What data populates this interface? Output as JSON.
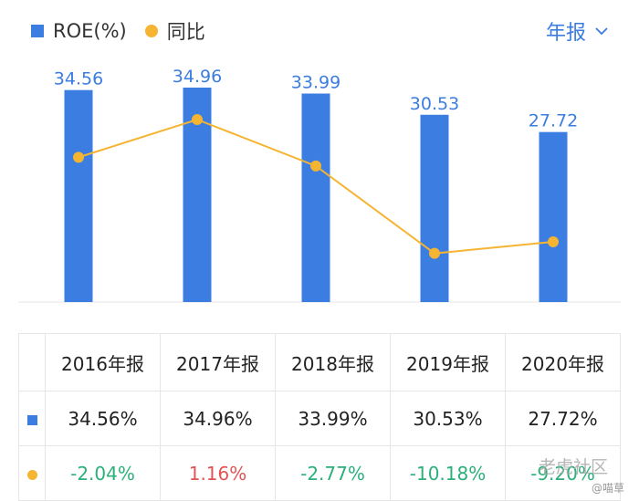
{
  "legend": {
    "bar_label": "ROE(%)",
    "line_label": "同比"
  },
  "period_selector": {
    "label": "年报"
  },
  "colors": {
    "bar": "#3b7de0",
    "line": "#f5b432",
    "positive": "#e05454",
    "negative": "#2bb07a"
  },
  "chart_data": {
    "type": "bar",
    "categories": [
      "2016年报",
      "2017年报",
      "2018年报",
      "2019年报",
      "2020年报"
    ],
    "series": [
      {
        "name": "ROE(%)",
        "type": "bar",
        "values": [
          34.56,
          34.96,
          33.99,
          30.53,
          27.72
        ],
        "labels": [
          "34.56",
          "34.96",
          "33.99",
          "30.53",
          "27.72"
        ]
      },
      {
        "name": "同比",
        "type": "line",
        "values": [
          -2.04,
          1.16,
          -2.77,
          -10.18,
          -9.2
        ]
      }
    ],
    "bar_ylim": [
      0,
      35.5
    ],
    "line_ylim": [
      -12.7,
      11.2
    ],
    "grid": false
  },
  "table": {
    "headers": [
      "2016年报",
      "2017年报",
      "2018年报",
      "2019年报",
      "2020年报"
    ],
    "roe_row": [
      "34.56%",
      "34.96%",
      "33.99%",
      "30.53%",
      "27.72%"
    ],
    "yoy_row": [
      "-2.04%",
      "1.16%",
      "-2.77%",
      "-10.18%",
      "-9.20%"
    ]
  },
  "watermark": {
    "main": "老虎社区",
    "sub": "@喵草"
  }
}
